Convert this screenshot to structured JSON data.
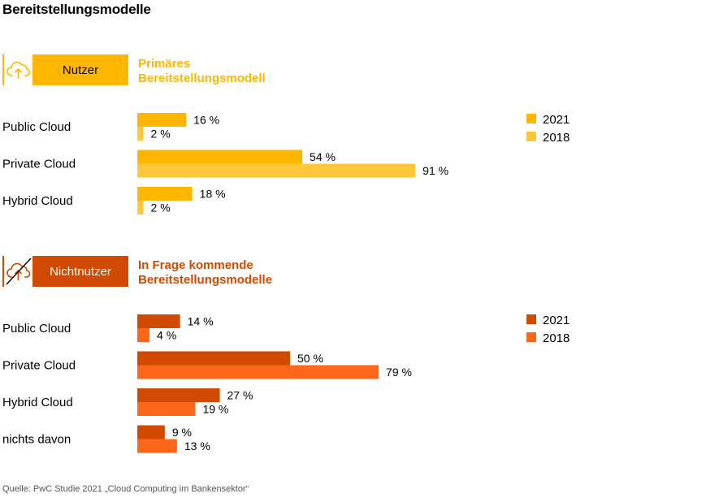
{
  "page": {
    "title": "Bereitstellungsmodelle",
    "source": "Quelle: PwC Studie 2021 „Cloud Computing im Bankensektor“"
  },
  "sections": [
    {
      "badge_label": "Nutzer",
      "badge_icon": "cloud-upload-icon",
      "heading_line1": "Primäres",
      "heading_line2": "Bereitstellungsmodell"
    },
    {
      "badge_label": "Nichtnutzer",
      "badge_icon": "cloud-upload-crossed-icon",
      "heading_line1": "In Frage kommende",
      "heading_line2": "Bereitstellungsmodelle"
    }
  ],
  "colors": {
    "nutzer_2021": "#ffb600",
    "nutzer_2018": "#ffc838",
    "nicht_2021": "#d04a02",
    "nicht_2018": "#fd6719"
  },
  "chart_data": [
    {
      "type": "bar",
      "orientation": "horizontal",
      "categories": [
        "Public Cloud",
        "Private Cloud",
        "Hybrid Cloud"
      ],
      "series": [
        {
          "name": "2021",
          "values": [
            16,
            54,
            18
          ],
          "labels": [
            "16 %",
            "54 %",
            "18 %"
          ],
          "color": "#ffb600"
        },
        {
          "name": "2018",
          "values": [
            2,
            91,
            2
          ],
          "labels": [
            "2 %",
            "91 %",
            "2 %"
          ],
          "color": "#ffc838"
        }
      ],
      "xlim": [
        0,
        100
      ],
      "legend": "right",
      "grid": false
    },
    {
      "type": "bar",
      "orientation": "horizontal",
      "categories": [
        "Public Cloud",
        "Private Cloud",
        "Hybrid Cloud",
        "nichts davon"
      ],
      "series": [
        {
          "name": "2021",
          "values": [
            14,
            50,
            27,
            9
          ],
          "labels": [
            "14 %",
            "50 %",
            "27 %",
            "9 %"
          ],
          "color": "#d04a02"
        },
        {
          "name": "2018",
          "values": [
            4,
            79,
            19,
            13
          ],
          "labels": [
            "4 %",
            "79 %",
            "19 %",
            "13 %"
          ],
          "color": "#fd6719"
        }
      ],
      "xlim": [
        0,
        100
      ],
      "legend": "right",
      "grid": false
    }
  ]
}
